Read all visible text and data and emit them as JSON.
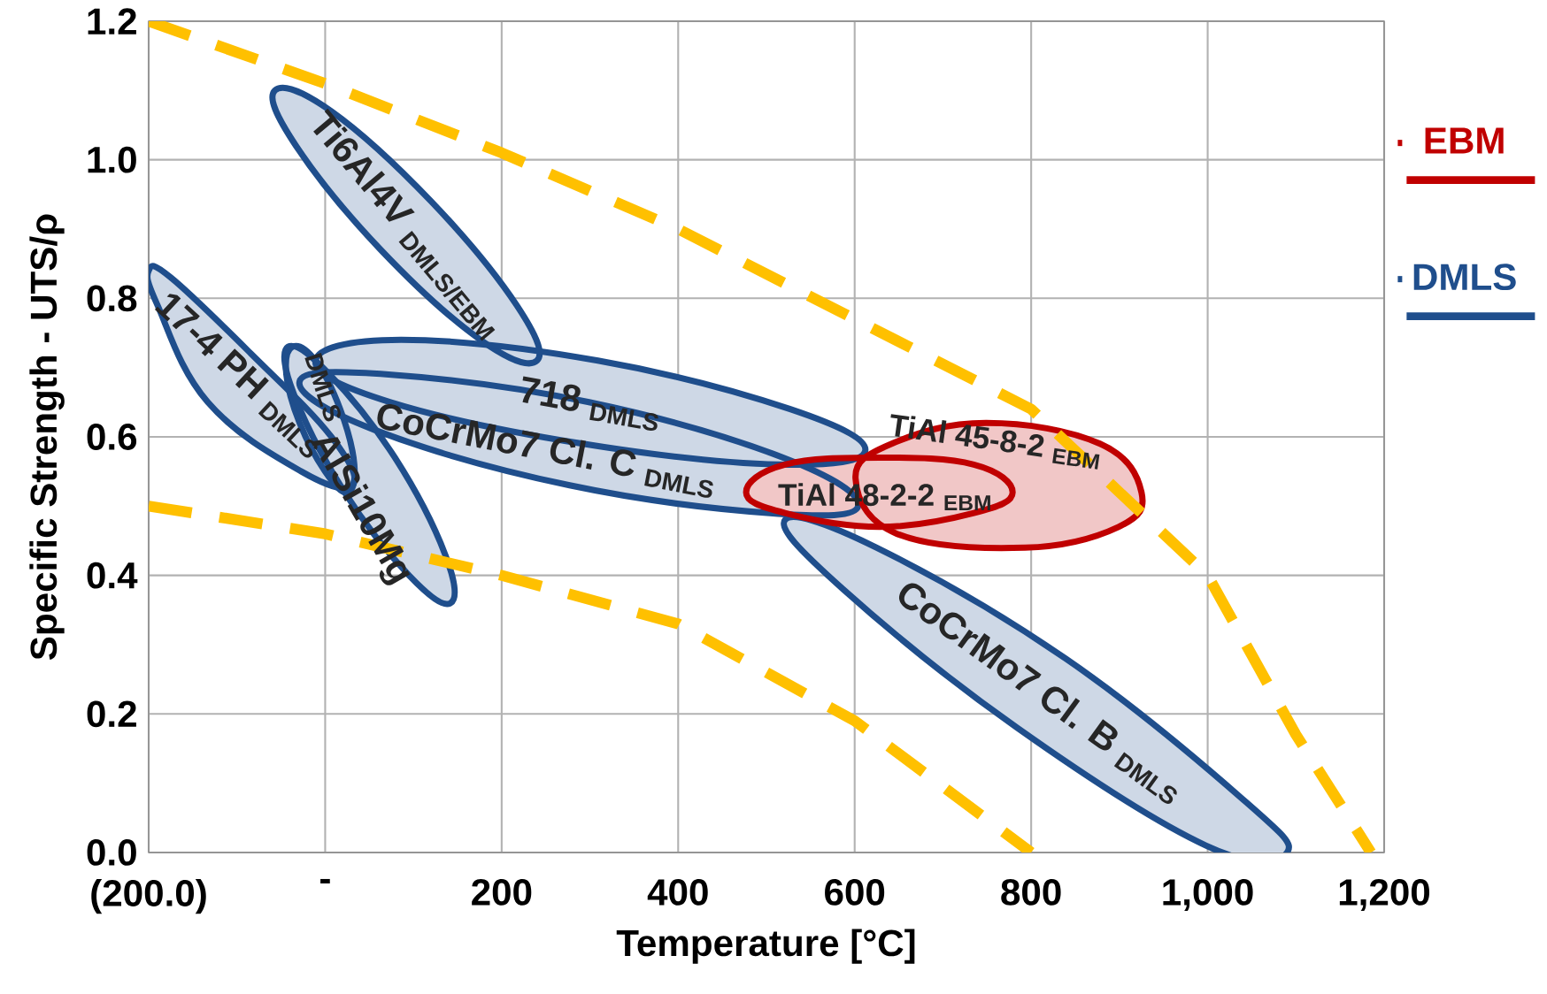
{
  "chart_data": {
    "type": "area",
    "xlabel": "Temperature [°C]",
    "ylabel": "Specific Strength - UTS/ρ",
    "xlim": [
      -200,
      1200
    ],
    "ylim": [
      0,
      1.2
    ],
    "xticks": [
      {
        "value": -200,
        "label": "(200.0)"
      },
      {
        "value": 0,
        "label": "-"
      },
      200,
      400,
      600,
      800,
      {
        "value": 1000,
        "label": "1,000"
      },
      {
        "value": 1200,
        "label": "1,200"
      }
    ],
    "yticks": [
      {
        "value": 0,
        "label": "0.0"
      },
      {
        "value": 0.2,
        "label": "0.2"
      },
      {
        "value": 0.4,
        "label": "0.4"
      },
      {
        "value": 0.6,
        "label": "0.6"
      },
      {
        "value": 0.8,
        "label": "0.8"
      },
      {
        "value": 1.0,
        "label": "1.0"
      },
      {
        "value": 1.2,
        "label": "1.2"
      }
    ],
    "grid": true,
    "legend": "right",
    "series": [
      {
        "type": "line",
        "line_style": "dashed",
        "color": "#ffc000",
        "x": [
          -200,
          0,
          200,
          400,
          600,
          800,
          900,
          1000,
          1100,
          1185
        ],
        "values": [
          1.2,
          1.11,
          1.01,
          0.9,
          0.77,
          0.64,
          0.52,
          0.4,
          0.17,
          0.0
        ]
      },
      {
        "type": "line",
        "line_style": "dashed",
        "color": "#ffc000",
        "x": [
          -200,
          0,
          200,
          400,
          600,
          800
        ],
        "values": [
          0.5,
          0.46,
          0.4,
          0.33,
          0.19,
          0.0
        ]
      },
      {
        "color": "#1f4e8c",
        "x": [
          240,
          217,
          120,
          7,
          -57,
          -33,
          63,
          176
        ],
        "values": [
          0.71,
          0.79,
          0.94,
          1.07,
          1.1,
          1.02,
          0.87,
          0.74
        ]
      },
      {
        "name": "DMLS",
        "color": "#1f4e8c",
        "x": [
          31,
          7,
          -84,
          -175,
          -200,
          -190,
          -133,
          -27
        ],
        "values": [
          0.53,
          0.6,
          0.72,
          0.83,
          0.84,
          0.79,
          0.65,
          0.55
        ]
      },
      {
        "color": "#1f4e8c",
        "x": [
          25,
          33,
          17,
          -11,
          -37,
          -44,
          -29,
          0
        ],
        "values": [
          0.52,
          0.56,
          0.64,
          0.71,
          0.73,
          0.69,
          0.62,
          0.55
        ]
      },
      {
        "color": "#1f4e8c",
        "x": [
          142,
          136,
          79,
          5,
          -42,
          -35,
          22,
          95
        ],
        "values": [
          0.36,
          0.43,
          0.57,
          0.69,
          0.73,
          0.66,
          0.52,
          0.4
        ]
      },
      {
        "color": "#1f4e8c",
        "x": [
          612,
          527,
          309,
          86,
          -11,
          74,
          292,
          515
        ],
        "values": [
          0.58,
          0.64,
          0.71,
          0.74,
          0.71,
          0.65,
          0.59,
          0.56
        ]
      },
      {
        "color": "#1f4e8c",
        "x": [
          604,
          519,
          299,
          72,
          -29,
          56,
          277,
          504
        ],
        "values": [
          0.5,
          0.57,
          0.65,
          0.69,
          0.68,
          0.61,
          0.53,
          0.49
        ]
      },
      {
        "color": "#1f4e8c",
        "x": [
          1090,
          1037,
          839,
          625,
          521,
          587,
          784,
          998
        ],
        "values": [
          0.0,
          0.08,
          0.28,
          0.44,
          0.48,
          0.38,
          0.18,
          0.01
        ]
      },
      {
        "color": "#c00000",
        "x": [
          925,
          878,
          749,
          642,
          601,
          648,
          793,
          899
        ],
        "values": [
          0.52,
          0.59,
          0.62,
          0.59,
          0.54,
          0.46,
          0.44,
          0.47
        ]
      },
      {
        "name": "EBM",
        "color": "#c00000",
        "x": [
          779,
          735,
          628,
          521,
          477,
          521,
          628,
          735
        ],
        "values": [
          0.52,
          0.56,
          0.57,
          0.56,
          0.52,
          0.49,
          0.47,
          0.49
        ]
      }
    ],
    "annotations": [
      "Ti6Al4V $_{DMLS/EBM}$",
      "17-4 PH $_{DMLS}$",
      "DMLS",
      "AlSi10Mg",
      "718 $_{DMLS}$",
      "CoCrMo7 Cl. C $_{DMLS}$",
      "CoCrMo7 Cl. B $_{DMLS}$",
      "TiAl 45-8-2 $_{EBM}$",
      "TiAl 48-2-2 $_{EBM}$"
    ]
  }
}
